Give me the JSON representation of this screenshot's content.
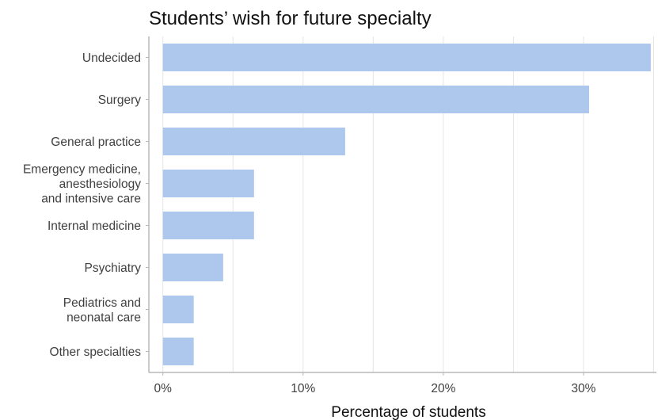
{
  "chart_data": {
    "type": "bar",
    "orientation": "horizontal",
    "title": "Students’ wish for future specialty",
    "xlabel": "Percentage of students",
    "ylabel": "",
    "xlim": [
      -0.01,
      0.352
    ],
    "xticks": [
      0,
      0.1,
      0.2,
      0.3
    ],
    "xtick_labels": [
      "0%",
      "10%",
      "20%",
      "30%"
    ],
    "grid": "vertical major",
    "bar_color": "#aec7ec",
    "categories": [
      "Undecided",
      "Surgery",
      "General practice",
      "Emergency medicine,\nanesthesiology\nand intensive care",
      "Internal medicine",
      "Psychiatry",
      "Pediatrics and\nneonatal care",
      "Other specialties"
    ],
    "values": [
      0.348,
      0.304,
      0.13,
      0.065,
      0.065,
      0.043,
      0.022,
      0.022
    ]
  }
}
